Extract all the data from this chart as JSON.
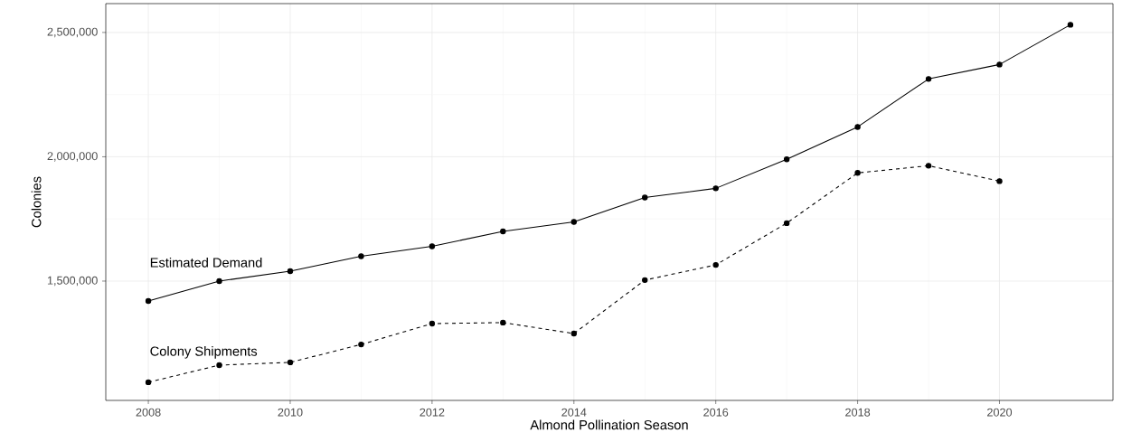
{
  "chart_data": {
    "type": "line",
    "xlabel": "Almond Pollination Season",
    "ylabel": "Colonies",
    "x": [
      2008,
      2009,
      2010,
      2011,
      2012,
      2013,
      2014,
      2015,
      2016,
      2017,
      2018,
      2019,
      2020,
      2021
    ],
    "series": [
      {
        "name": "Estimated Demand",
        "color": "#000000",
        "line_style": "solid",
        "values": [
          1420000,
          1500000,
          1540000,
          1600000,
          1640000,
          1700000,
          1738000,
          1836000,
          1873000,
          1990000,
          2120000,
          2313000,
          2371000,
          2531000
        ]
      },
      {
        "name": "Colony Shipments",
        "color": "#000000",
        "line_style": "dashed",
        "values": [
          1093000,
          1162000,
          1173000,
          1245000,
          1329000,
          1333000,
          1289000,
          1504000,
          1565000,
          1733000,
          1935000,
          1964000,
          1902000,
          null
        ]
      }
    ],
    "marker": "circle",
    "xlim": [
      2007.4,
      2021.6
    ],
    "ylim": [
      1020000,
      2616000
    ],
    "xticks": [
      2008,
      2010,
      2012,
      2014,
      2016,
      2018,
      2020
    ],
    "yticks": [
      {
        "value": 1500000,
        "label": "1,500,000"
      },
      {
        "value": 2000000,
        "label": "2,000,000"
      },
      {
        "value": 2500000,
        "label": "2,500,000"
      }
    ],
    "grid": true
  }
}
